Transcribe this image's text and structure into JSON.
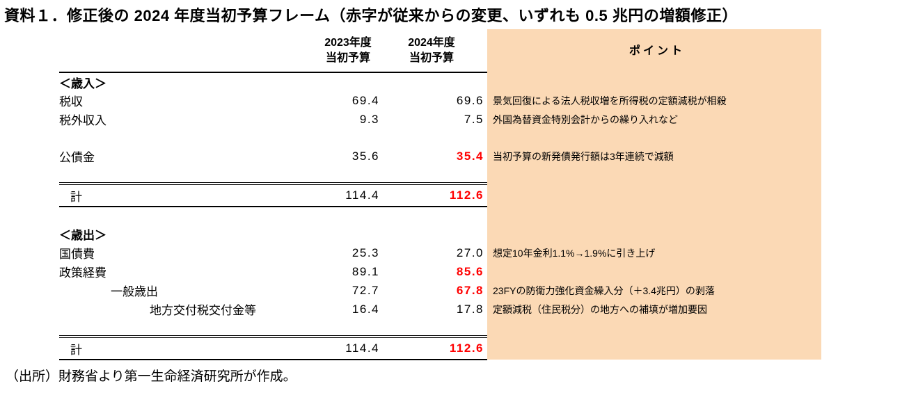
{
  "title": "資料１．修正後の 2024 年度当初予算フレーム（赤字が従来からの変更、いずれも 0.5 兆円の増額修正）",
  "footer": "（出所）財務省より第一生命経済研究所が作成。",
  "colors": {
    "point_bg": "#FBD9B5",
    "red": "#FF0000"
  },
  "table": {
    "headers": {
      "fy2023": "2023年度\n当初予算",
      "fy2024": "2024年度\n当初予算",
      "point": "ポイント"
    },
    "rows": [
      {
        "type": "section",
        "label": "＜歳入＞"
      },
      {
        "type": "data",
        "label": "税収",
        "v2023": "69.4",
        "v2024": "69.6",
        "red": false,
        "point": "景気回復による法人税収増を所得税の定額減税が相殺"
      },
      {
        "type": "data",
        "label": "税外収入",
        "v2023": "9.3",
        "v2024": "7.5",
        "red": false,
        "point": "外国為替資金特別会計からの繰り入れなど"
      },
      {
        "type": "spacer"
      },
      {
        "type": "data",
        "label": "公債金",
        "v2023": "35.6",
        "v2024": "35.4",
        "red": true,
        "point": "当初予算の新発債発行額は3年連続で減額"
      },
      {
        "type": "spacer"
      },
      {
        "type": "total",
        "label": "計",
        "v2023": "114.4",
        "v2024": "112.6",
        "red": true
      },
      {
        "type": "spacer"
      },
      {
        "type": "section",
        "label": "＜歳出＞"
      },
      {
        "type": "data",
        "label": "国債費",
        "v2023": "25.3",
        "v2024": "27.0",
        "red": false,
        "point": "想定10年金利1.1%→1.9%に引き上げ"
      },
      {
        "type": "data",
        "label": "政策経費",
        "v2023": "89.1",
        "v2024": "85.6",
        "red": true
      },
      {
        "type": "data",
        "label": "一般歳出",
        "indent": 1,
        "v2023": "72.7",
        "v2024": "67.8",
        "red": true,
        "point": "23FYの防衛力強化資金繰入分（＋3.4兆円）の剥落"
      },
      {
        "type": "data",
        "label": "地方交付税交付金等",
        "indent": 2,
        "v2023": "16.4",
        "v2024": "17.8",
        "red": false,
        "point": "定額減税（住民税分）の地方への補填が増加要因"
      },
      {
        "type": "spacer"
      },
      {
        "type": "total",
        "label": "計",
        "v2023": "114.4",
        "v2024": "112.6",
        "red": true
      }
    ]
  }
}
